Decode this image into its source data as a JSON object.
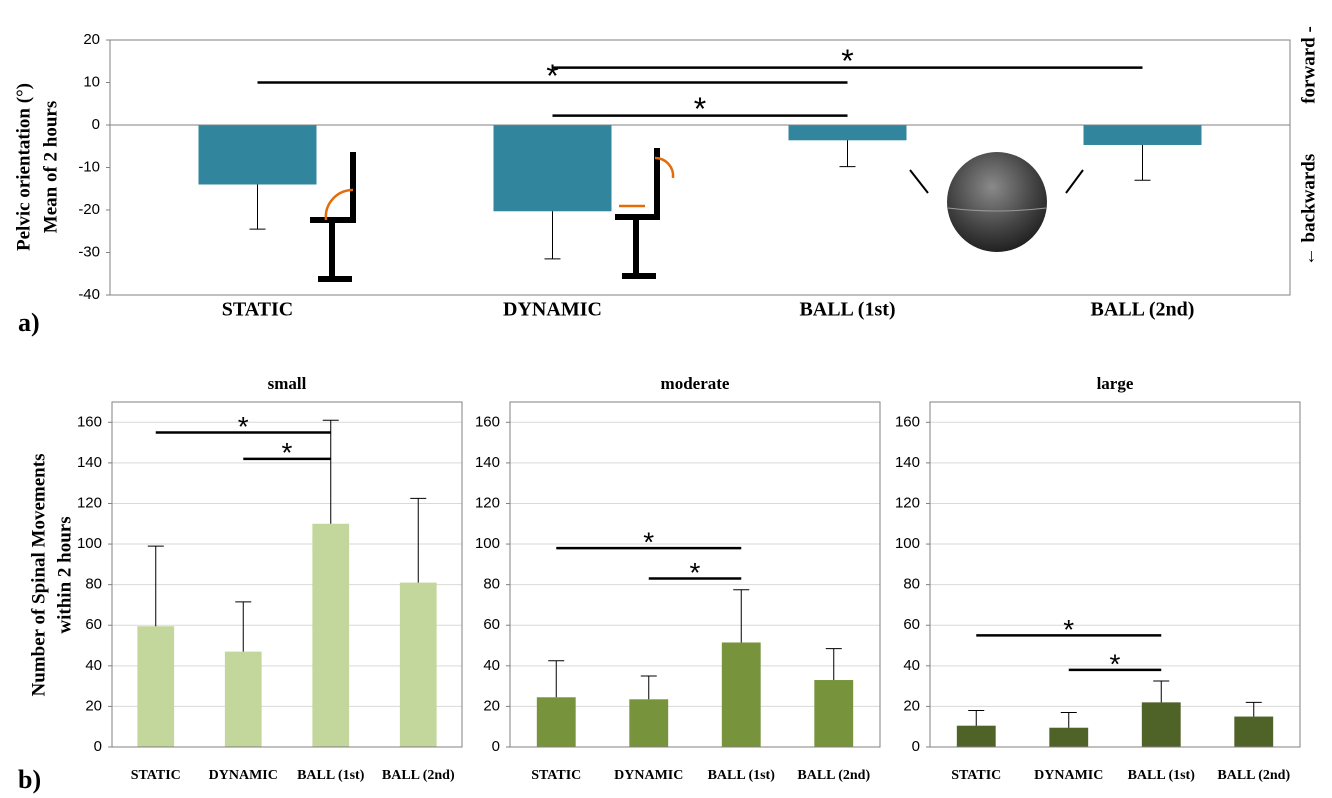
{
  "chart_data": [
    {
      "type": "bar",
      "panel_label": "a)",
      "ylabel": [
        "Pelvic orientation (°)",
        "Mean of 2 hours"
      ],
      "right_labels": [
        "forward -",
        "← backwards"
      ],
      "categories": [
        "STATIC",
        "DYNAMIC",
        "BALL (1st)",
        "BALL (2nd)"
      ],
      "values": [
        -14,
        -20.3,
        -3.6,
        -4.7
      ],
      "errors": [
        10.5,
        11.2,
        6.2,
        8.3
      ],
      "color": "#31859c",
      "ylim": [
        -40,
        20
      ],
      "yticks": [
        -40,
        -30,
        -20,
        -10,
        0,
        10,
        20
      ],
      "grid": false,
      "brackets": [
        {
          "label": "*",
          "between": [
            0,
            2
          ],
          "y": 10
        },
        {
          "label": "*",
          "between": [
            1,
            3
          ],
          "y": 13.5
        },
        {
          "label": "*",
          "between": [
            1,
            2
          ],
          "y": 2.2
        }
      ]
    },
    {
      "type": "bar",
      "panel_label": "b)",
      "title": "small",
      "ylabel": [
        "Number of Spinal Movements",
        "within 2 hours"
      ],
      "categories": [
        "STATIC",
        "DYNAMIC",
        "BALL (1st)",
        "BALL (2nd)"
      ],
      "values": [
        59.5,
        47,
        110,
        81
      ],
      "errors": [
        39.5,
        24.5,
        51,
        41.5
      ],
      "color": "#c3d69b",
      "ylim": [
        0,
        170
      ],
      "yticks": [
        0,
        20,
        40,
        60,
        80,
        100,
        120,
        140,
        160
      ],
      "grid": true,
      "brackets": [
        {
          "label": "*",
          "between": [
            0,
            2
          ],
          "y": 155
        },
        {
          "label": "*",
          "between": [
            1,
            2
          ],
          "y": 142
        }
      ]
    },
    {
      "type": "bar",
      "title": "moderate",
      "categories": [
        "STATIC",
        "DYNAMIC",
        "BALL (1st)",
        "BALL (2nd)"
      ],
      "values": [
        24.5,
        23.5,
        51.5,
        33
      ],
      "errors": [
        18,
        11.5,
        26,
        15.5
      ],
      "color": "#77933c",
      "ylim": [
        0,
        170
      ],
      "yticks": [
        0,
        20,
        40,
        60,
        80,
        100,
        120,
        140,
        160
      ],
      "grid": true,
      "brackets": [
        {
          "label": "*",
          "between": [
            0,
            2
          ],
          "y": 98
        },
        {
          "label": "*",
          "between": [
            1,
            2
          ],
          "y": 83
        }
      ]
    },
    {
      "type": "bar",
      "title": "large",
      "categories": [
        "STATIC",
        "DYNAMIC",
        "BALL (1st)",
        "BALL (2nd)"
      ],
      "values": [
        10.5,
        9.5,
        22,
        15
      ],
      "errors": [
        7.5,
        7.5,
        10.5,
        7
      ],
      "color": "#4f6228",
      "ylim": [
        0,
        170
      ],
      "yticks": [
        0,
        20,
        40,
        60,
        80,
        100,
        120,
        140,
        160
      ],
      "grid": true,
      "brackets": [
        {
          "label": "*",
          "between": [
            0,
            2
          ],
          "y": 55
        },
        {
          "label": "*",
          "between": [
            1,
            2
          ],
          "y": 38
        }
      ]
    }
  ]
}
